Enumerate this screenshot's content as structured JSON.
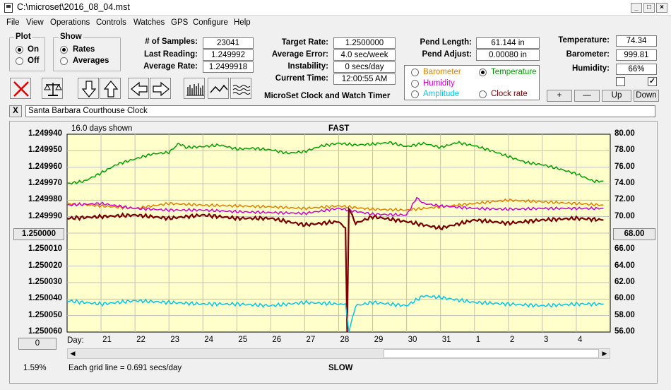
{
  "window": {
    "title": "C:\\microset\\2016_08_04.mst"
  },
  "menu": [
    "File",
    "View",
    "Operations",
    "Controls",
    "Watches",
    "GPS",
    "Configure",
    "Help"
  ],
  "plot_group": {
    "title": "Plot",
    "on": "On",
    "off": "Off",
    "selected": "On"
  },
  "show_group": {
    "title": "Show",
    "rates": "Rates",
    "averages": "Averages",
    "selected": "Rates"
  },
  "stats": {
    "samples_label": "# of Samples:",
    "samples": "23041",
    "last_reading_label": "Last Reading:",
    "last_reading": "1.249992",
    "average_rate_label": "Average Rate:",
    "average_rate": "1.2499918"
  },
  "targets": {
    "target_rate_label": "Target Rate:",
    "target_rate": "1.2500000",
    "average_error_label": "Average Error:",
    "average_error": "4.0 sec/week",
    "instability_label": "Instability:",
    "instability": "0 secs/day",
    "current_time_label": "Current Time:",
    "current_time": "12:00:55 AM",
    "app_name": "MicroSet Clock and Watch Timer"
  },
  "pendulum": {
    "length_label": "Pend Length:",
    "length": "61.144 in",
    "adjust_label": "Pend Adjust:",
    "adjust": "0.00080 in"
  },
  "environment": {
    "temperature_label": "Temperature:",
    "temperature": "74.34",
    "barometer_label": "Barometer:",
    "barometer": "999.81",
    "humidity_label": "Humidity:",
    "humidity": "66%"
  },
  "overlay_options": {
    "barometer": "Barometer",
    "temperature": "Temperature",
    "humidity": "Humidity",
    "amplitude": "Amplitude",
    "clock_rate": "Clock rate",
    "selected": "Temperature",
    "colors": {
      "barometer": "#e08000",
      "temperature": "#00a000",
      "humidity": "#d000d0",
      "amplitude": "#00c8e8",
      "clock_rate": "#7a0000"
    }
  },
  "adjust_buttons": {
    "plus": "+",
    "minus": "—",
    "up": "Up",
    "down": "Down"
  },
  "checkboxes": {
    "left_checked": false,
    "right_checked": true
  },
  "clock_name": {
    "close": "X",
    "name": "Santa Barbara Courthouse Clock"
  },
  "plot": {
    "days_shown": "16.0 days shown",
    "top_label": "FAST",
    "bottom_label": "SLOW",
    "grid_note": "Each grid line = 0.691 secs/day",
    "left_percent": "1.59%",
    "center_rate_button": "1.250000",
    "center_value_button": "68.00",
    "bottom_left_button": "0",
    "day_label": "Day:",
    "background": "#ffffcc"
  },
  "chart_data": {
    "type": "line",
    "x_label": "Day:",
    "x_ticks": [
      "21",
      "22",
      "23",
      "24",
      "25",
      "26",
      "27",
      "28",
      "29",
      "30",
      "31",
      "1",
      "2",
      "3",
      "4"
    ],
    "left_axis_ticks": [
      "1.249940",
      "1.249950",
      "1.249960",
      "1.249970",
      "1.249980",
      "1.249990",
      "1.250000",
      "1.250010",
      "1.250020",
      "1.250030",
      "1.250040",
      "1.250050",
      "1.250060"
    ],
    "left_axis_range": [
      1.24994,
      1.25006
    ],
    "right_axis_ticks": [
      "80.00",
      "78.00",
      "76.00",
      "74.00",
      "72.00",
      "70.00",
      "68.00",
      "66.00",
      "64.00",
      "62.00",
      "60.00",
      "58.00",
      "56.00"
    ],
    "right_axis_range": [
      56,
      80
    ],
    "grid": true,
    "series": [
      {
        "name": "Temperature",
        "color": "#00a000",
        "axis": "right",
        "x": [
          20.0,
          20.5,
          21.0,
          21.5,
          22.0,
          22.5,
          23.0,
          23.3,
          23.5,
          24.0,
          24.5,
          25.0,
          25.5,
          26.0,
          26.5,
          27.0,
          27.5,
          28.0,
          28.5,
          29.0,
          29.5,
          30.0,
          30.5,
          31.0,
          31.5,
          32.0,
          32.5,
          33.0,
          33.5,
          34.0,
          34.5,
          35.0,
          35.5,
          35.8
        ],
        "y": [
          74.0,
          74.3,
          75.3,
          76.4,
          77.0,
          77.6,
          77.8,
          78.9,
          78.4,
          78.5,
          78.7,
          78.2,
          78.3,
          78.1,
          77.7,
          77.9,
          78.6,
          78.9,
          78.7,
          78.8,
          79.0,
          78.5,
          78.9,
          78.4,
          79.0,
          78.6,
          78.0,
          77.3,
          76.6,
          76.3,
          75.8,
          75.2,
          74.3,
          74.3
        ]
      },
      {
        "name": "Barometer",
        "color": "#e08000",
        "axis": "right",
        "x": [
          20.0,
          21.0,
          22.0,
          23.0,
          24.0,
          25.0,
          26.0,
          27.0,
          28.0,
          29.0,
          30.0,
          31.0,
          32.0,
          33.0,
          34.0,
          35.0,
          35.8
        ],
        "y": [
          71.6,
          71.3,
          71.0,
          71.6,
          71.4,
          71.3,
          71.2,
          71.0,
          71.3,
          70.9,
          70.8,
          71.2,
          71.6,
          72.0,
          71.8,
          71.6,
          71.4
        ]
      },
      {
        "name": "Humidity",
        "color": "#d000d0",
        "axis": "right",
        "x": [
          20.0,
          21.0,
          22.0,
          23.0,
          24.0,
          25.0,
          26.0,
          27.0,
          28.0,
          29.0,
          30.0,
          30.3,
          30.5,
          31.0,
          32.0,
          33.0,
          34.0,
          35.0,
          35.8
        ],
        "y": [
          71.4,
          71.6,
          71.0,
          70.8,
          70.8,
          70.6,
          70.5,
          70.4,
          71.0,
          70.3,
          70.2,
          72.3,
          71.6,
          71.3,
          71.0,
          70.9,
          71.0,
          71.0,
          71.0
        ]
      },
      {
        "name": "Clock rate",
        "color": "#7a0000",
        "axis": "left",
        "x": [
          20.0,
          21.0,
          22.0,
          23.0,
          24.0,
          25.0,
          26.0,
          27.0,
          28.0,
          28.2,
          28.25,
          28.3,
          28.5,
          29.0,
          30.0,
          31.0,
          32.0,
          33.0,
          34.0,
          35.0,
          35.8
        ],
        "y": [
          1.249991,
          1.24999,
          1.249989,
          1.249991,
          1.249989,
          1.249991,
          1.249991,
          1.249995,
          1.249993,
          1.249997,
          1.25006,
          1.249985,
          1.249994,
          1.24999,
          1.249993,
          1.249997,
          1.249992,
          1.249994,
          1.249992,
          1.249991,
          1.249992
        ]
      },
      {
        "name": "Amplitude",
        "color": "#00c8e8",
        "axis": "left",
        "x": [
          20.0,
          21.0,
          22.0,
          23.0,
          24.0,
          25.0,
          26.0,
          27.0,
          28.0,
          28.2,
          28.3,
          28.5,
          29.0,
          30.0,
          30.5,
          31.0,
          32.0,
          33.0,
          34.0,
          35.0,
          35.8
        ],
        "y": [
          1.250041,
          1.250043,
          1.250041,
          1.250042,
          1.250043,
          1.250043,
          1.250044,
          1.250042,
          1.250043,
          1.250043,
          1.25006,
          1.250044,
          1.250042,
          1.250044,
          1.250038,
          1.250039,
          1.250042,
          1.250043,
          1.250044,
          1.250043,
          1.250043
        ]
      }
    ]
  }
}
